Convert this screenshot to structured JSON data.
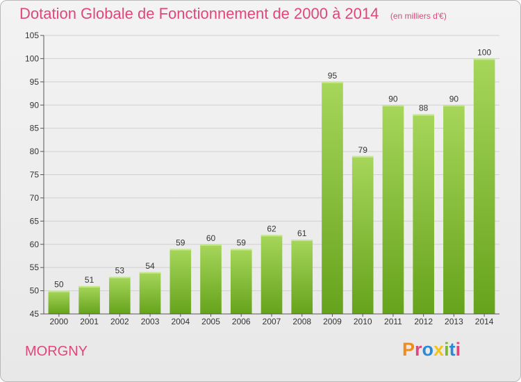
{
  "header": {
    "title": "Dotation Globale de Fonctionnement de 2000 à 2014",
    "subtitle": "(en milliers d'€)"
  },
  "footer": {
    "commune": "MORGNY",
    "brand": "Proxiti"
  },
  "colors": {
    "title": "#e0467a",
    "bar_light": "#a6d65a",
    "bar_dark": "#66a31c",
    "grid": "#d0d0d0",
    "axis": "#555555",
    "brand_letters": [
      "#f08a1e",
      "#e0467a",
      "#2a8ad6",
      "#f0c419",
      "#7bb82a",
      "#2a8ad6",
      "#e0467a"
    ]
  },
  "chart_data": {
    "type": "bar",
    "title": "Dotation Globale de Fonctionnement de 2000 à 2014",
    "subtitle": "(en milliers d'€)",
    "categories": [
      "2000",
      "2001",
      "2002",
      "2003",
      "2004",
      "2005",
      "2006",
      "2007",
      "2008",
      "2009",
      "2010",
      "2011",
      "2012",
      "2013",
      "2014"
    ],
    "values": [
      50,
      51,
      53,
      54,
      59,
      60,
      59,
      62,
      61,
      95,
      79,
      90,
      88,
      90,
      100
    ],
    "ylim": [
      45,
      105
    ],
    "yticks": [
      45,
      50,
      55,
      60,
      65,
      70,
      75,
      80,
      85,
      90,
      95,
      100,
      105
    ],
    "grid": true,
    "legend": "none"
  }
}
